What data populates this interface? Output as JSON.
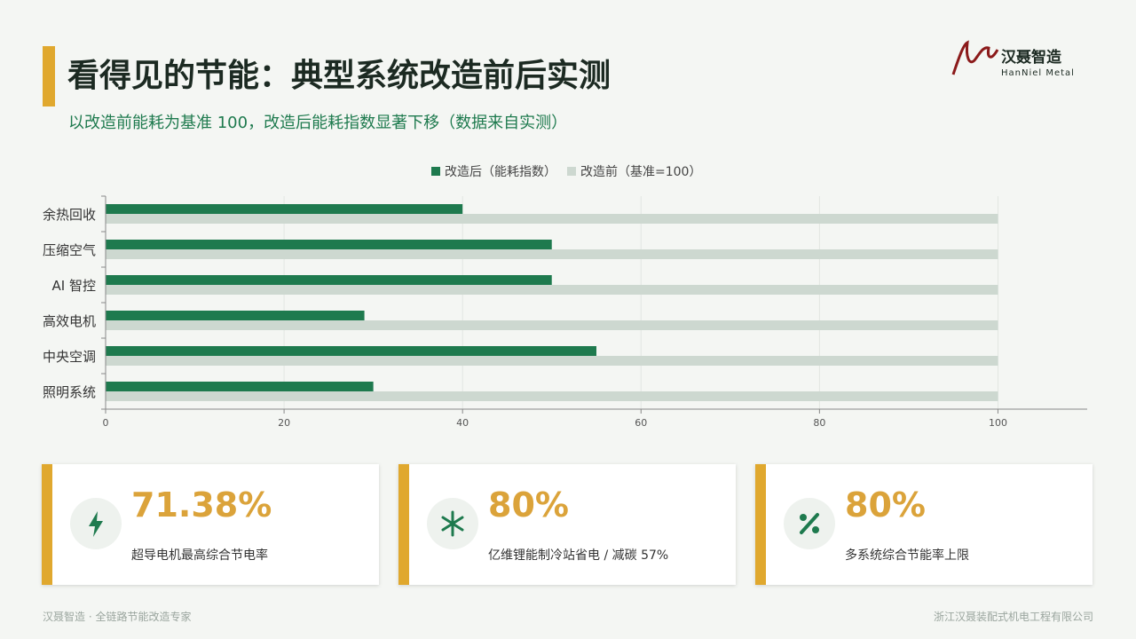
{
  "header": {
    "title": "看得见的节能：典型系统改造前后实测",
    "subtitle": "以改造前能耗为基准 100，改造后能耗指数显著下移（数据来自实测）",
    "logo_name": "汉聂智造",
    "logo_en": "HanNiel Metal"
  },
  "chart_data": {
    "type": "hbar",
    "categories": [
      "余热回收",
      "压缩空气",
      "AI 智控",
      "高效电机",
      "中央空调",
      "照明系统"
    ],
    "series": [
      {
        "name": "改造后（能耗指数）",
        "color": "#1e7a4e",
        "values": [
          40,
          50,
          50,
          29,
          55,
          30
        ]
      },
      {
        "name": "改造前（基准=100）",
        "color": "#cdd8d0",
        "values": [
          100,
          100,
          100,
          100,
          100,
          100
        ]
      }
    ],
    "xlim": [
      0,
      110
    ],
    "xticks": [
      0,
      20,
      40,
      60,
      80,
      100
    ],
    "grid": true,
    "legend": "top"
  },
  "cards": [
    {
      "value": "71.38%",
      "label": "超导电机最高综合节电率"
    },
    {
      "value": "80%",
      "label": "亿维锂能制冷站省电 / 减碳 57%"
    },
    {
      "value": "80%",
      "label": "多系统综合节能率上限"
    }
  ],
  "footer": {
    "left": "汉聂智造 · 全链路节能改造专家",
    "right": "浙江汉聂装配式机电工程有限公司"
  }
}
